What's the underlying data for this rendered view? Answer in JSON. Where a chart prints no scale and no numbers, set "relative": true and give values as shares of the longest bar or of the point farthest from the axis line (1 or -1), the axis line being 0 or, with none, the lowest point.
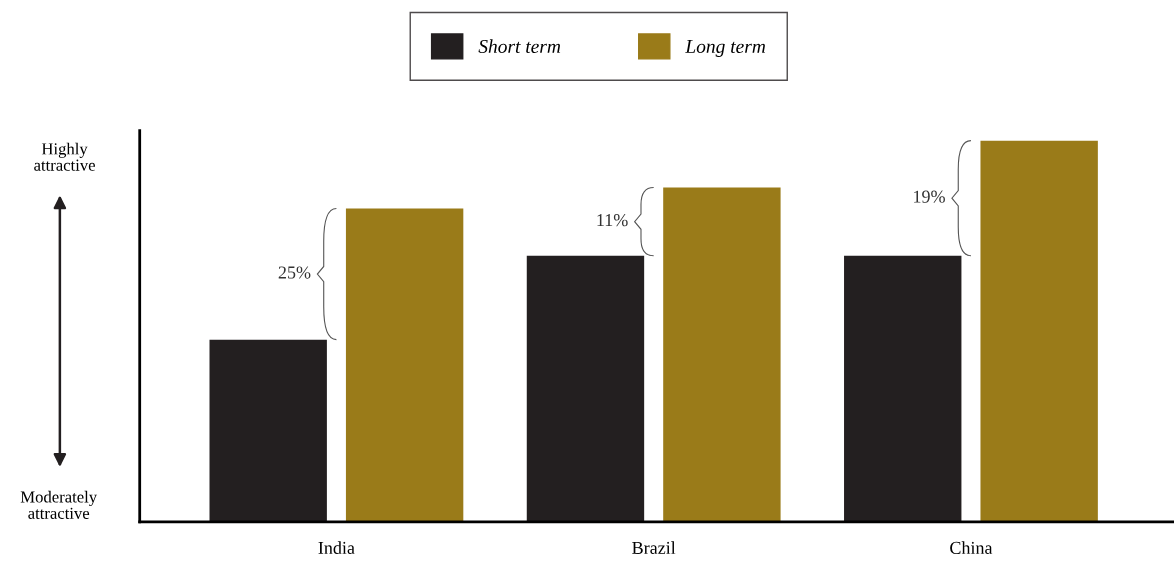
{
  "chart_data": {
    "type": "bar",
    "relative": true,
    "categories": [
      "India",
      "Brazil",
      "China"
    ],
    "series": [
      {
        "name": "Short term",
        "color": "#231f20",
        "values": [
          0.478,
          0.698,
          0.698
        ]
      },
      {
        "name": "Long term",
        "color": "#9a7b19",
        "values": [
          0.822,
          0.877,
          1
        ]
      }
    ],
    "annotations": [
      "25%",
      "11%",
      "19%",
      "Highly\nattractive",
      "Moderately\nattractive"
    ],
    "legend": "top",
    "grid": false
  }
}
